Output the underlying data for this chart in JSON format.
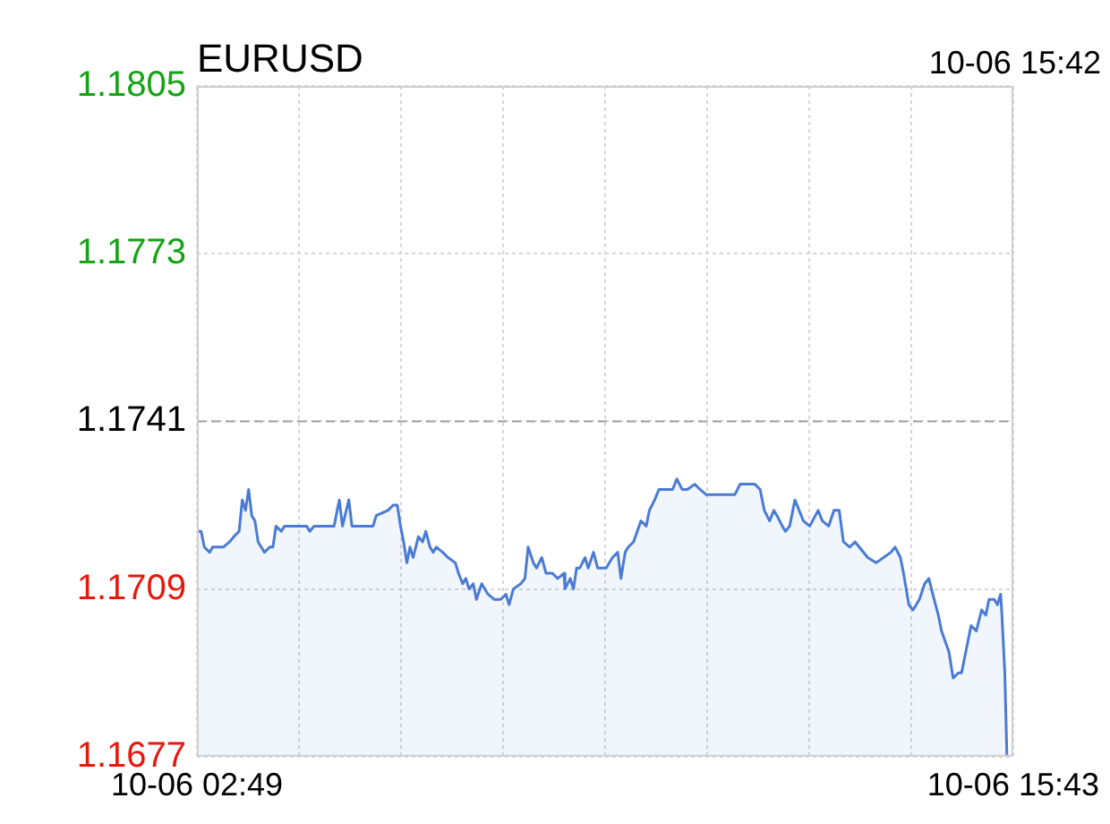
{
  "chart_data": {
    "type": "area",
    "title": "EURUSD",
    "annotations": [
      "10-06 15:42"
    ],
    "x": [
      "--10-06T02:49",
      "--10-06T02:53",
      "--10-06T02:56",
      "--10-06T03:01",
      "--10-06T03:04",
      "--10-06T03:14",
      "--10-06T03:20",
      "--10-06T03:24",
      "--10-06T03:29",
      "--10-06T03:32",
      "--10-06T03:35",
      "--10-06T03:38",
      "--10-06T03:41",
      "--10-06T03:44",
      "--10-06T03:47",
      "--10-06T03:53",
      "--10-06T03:58",
      "--10-06T04:01",
      "--10-06T04:04",
      "--10-06T04:09",
      "--10-06T04:12",
      "--10-06T04:18",
      "--10-06T04:33",
      "--10-06T04:36",
      "--10-06T04:40",
      "--10-06T04:56",
      "--10-06T04:59",
      "--10-06T05:01",
      "--10-06T05:04",
      "--10-06T05:07",
      "--10-06T05:13",
      "--10-06T05:16",
      "--10-06T05:22",
      "--10-06T05:36",
      "--10-06T05:39",
      "--10-06T05:50",
      "--10-06T05:55",
      "--10-06T05:59",
      "--10-06T06:02",
      "--10-06T06:05",
      "--10-06T06:08",
      "--10-06T06:11",
      "--10-06T06:14",
      "--10-06T06:19",
      "--10-06T06:23",
      "--10-06T06:26",
      "--10-06T06:30",
      "--10-06T06:33",
      "--10-06T06:36",
      "--10-06T06:42",
      "--10-06T06:47",
      "--10-06T06:54",
      "--10-06T06:57",
      "--10-06T07:01",
      "--10-06T07:04",
      "--10-06T07:07",
      "--10-06T07:11",
      "--10-06T07:14",
      "--10-06T07:19",
      "--10-06T07:25",
      "--10-06T07:31",
      "--10-06T07:37",
      "--10-06T07:42",
      "--10-06T07:45",
      "--10-06T07:49",
      "--10-06T07:56",
      "--10-06T08:00",
      "--10-06T08:03",
      "--10-06T08:08",
      "--10-06T08:11",
      "--10-06T08:16",
      "--10-06T08:20",
      "--10-06T08:26",
      "--10-06T08:31",
      "--10-06T08:37",
      "--10-06T08:38",
      "--10-06T08:43",
      "--10-06T08:46",
      "--10-06T08:49",
      "--10-06T08:52",
      "--10-06T08:57",
      "--10-06T09:00",
      "--10-06T09:05",
      "--10-06T09:09",
      "--10-06T09:17",
      "--10-06T09:23",
      "--10-06T09:28",
      "--10-06T09:31",
      "--10-06T09:35",
      "--10-06T09:38",
      "--10-06T09:43",
      "--10-06T09:50",
      "--10-06T09:55",
      "--10-06T09:58",
      "--10-06T10:03",
      "--10-06T10:07",
      "--10-06T10:13",
      "--10-06T10:20",
      "--10-06T10:24",
      "--10-06T10:29",
      "--10-06T10:34",
      "--10-06T10:41",
      "--10-06T10:46",
      "--10-06T10:52",
      "--10-06T11:02",
      "--10-06T11:19",
      "--10-06T11:24",
      "--10-06T11:38",
      "--10-06T11:43",
      "--10-06T11:47",
      "--10-06T11:52",
      "--10-06T11:56",
      "--10-06T11:59",
      "--10-06T12:04",
      "--10-06T12:07",
      "--10-06T12:11",
      "--10-06T12:16",
      "--10-06T12:24",
      "--10-06T12:30",
      "--10-06T12:38",
      "--10-06T12:42",
      "--10-06T12:48",
      "--10-06T12:53",
      "--10-06T12:58",
      "--10-06T13:02",
      "--10-06T13:08",
      "--10-06T13:13",
      "--10-06T13:17",
      "--10-06T13:25",
      "--10-06T13:33",
      "--10-06T13:40",
      "--10-06T13:47",
      "--10-06T13:51",
      "--10-06T13:56",
      "--10-06T13:59",
      "--10-06T14:04",
      "--10-06T14:08",
      "--10-06T14:14",
      "--10-06T14:19",
      "--10-06T14:23",
      "--10-06T14:28",
      "--10-06T14:32",
      "--10-06T14:35",
      "--10-06T14:42",
      "--10-06T14:46",
      "--10-06T14:51",
      "--10-06T14:54",
      "--10-06T14:59",
      "--10-06T15:03",
      "--10-06T15:08",
      "--10-06T15:13",
      "--10-06T15:17",
      "--10-06T15:20",
      "--10-06T15:25",
      "--10-06T15:28",
      "--10-06T15:31",
      "--10-06T15:32",
      "--10-06T15:35",
      "--10-06T15:37"
    ],
    "values": [
      1.172,
      1.172,
      1.1717,
      1.1716,
      1.1717,
      1.1717,
      1.1718,
      1.1719,
      1.172,
      1.1726,
      1.1724,
      1.1728,
      1.1723,
      1.1722,
      1.1718,
      1.1716,
      1.1717,
      1.1717,
      1.1721,
      1.172,
      1.1721,
      1.1721,
      1.1721,
      1.172,
      1.1721,
      1.1721,
      1.1721,
      1.1723,
      1.1726,
      1.1721,
      1.1726,
      1.1721,
      1.1721,
      1.1721,
      1.1723,
      1.1724,
      1.1725,
      1.1725,
      1.1721,
      1.1718,
      1.1714,
      1.1717,
      1.1715,
      1.1719,
      1.1718,
      1.172,
      1.1717,
      1.1716,
      1.1717,
      1.1716,
      1.1715,
      1.1714,
      1.1712,
      1.171,
      1.1711,
      1.1709,
      1.171,
      1.1707,
      1.171,
      1.1708,
      1.1707,
      1.1707,
      1.1708,
      1.1706,
      1.1709,
      1.171,
      1.1711,
      1.1717,
      1.1714,
      1.1713,
      1.1715,
      1.1712,
      1.1712,
      1.1711,
      1.1712,
      1.1709,
      1.1711,
      1.1709,
      1.1713,
      1.1713,
      1.1715,
      1.1713,
      1.1716,
      1.1713,
      1.1713,
      1.1715,
      1.1716,
      1.1711,
      1.1716,
      1.1717,
      1.1718,
      1.1722,
      1.1721,
      1.1724,
      1.1726,
      1.1728,
      1.1728,
      1.1728,
      1.173,
      1.1728,
      1.1728,
      1.1729,
      1.1728,
      1.1727,
      1.1727,
      1.1727,
      1.1729,
      1.1729,
      1.1728,
      1.1724,
      1.1722,
      1.1724,
      1.1723,
      1.1721,
      1.172,
      1.1721,
      1.1726,
      1.1722,
      1.1721,
      1.1724,
      1.1722,
      1.1721,
      1.1724,
      1.1724,
      1.1718,
      1.1717,
      1.1718,
      1.1717,
      1.1715,
      1.1714,
      1.1715,
      1.1716,
      1.1717,
      1.1715,
      1.1712,
      1.1706,
      1.1705,
      1.1707,
      1.171,
      1.1711,
      1.1707,
      1.1704,
      1.1701,
      1.1697,
      1.1692,
      1.1693,
      1.1693,
      1.1698,
      1.1702,
      1.1701,
      1.1705,
      1.1704,
      1.1707,
      1.1707,
      1.1706,
      1.1708,
      1.1705,
      1.1693,
      1.1677
    ],
    "color": "#4a7bd4",
    "marker": "none",
    "line_style": "solid",
    "grid": true,
    "legend": false,
    "ylim": [
      1.1677,
      1.1805
    ],
    "yticks": [
      1.1677,
      1.1709,
      1.1741,
      1.1773,
      1.1805
    ],
    "xlim": [
      "--10-06T02:49",
      "--10-06T15:43"
    ],
    "xticks": [
      {
        "value": "--10-06T02:49",
        "label": "10-06 02:49"
      },
      {
        "value": "--10-06T04:25:45",
        "label": null
      },
      {
        "value": "--10-06T06:02:30",
        "label": null
      },
      {
        "value": "--10-06T07:39:15",
        "label": null
      },
      {
        "value": "--10-06T09:16",
        "label": null
      },
      {
        "value": "--10-06T10:52:45",
        "label": null
      },
      {
        "value": "--10-06T12:29:30",
        "label": null
      },
      {
        "value": "--10-06T14:06:15",
        "label": null
      },
      {
        "value": "--10-06T15:43",
        "label": "10-06 15:43"
      }
    ],
    "ref_lines": [
      {
        "axis": "y",
        "value": 1.1741,
        "color": "#a0a0a0",
        "line_style": "dashed"
      }
    ]
  }
}
